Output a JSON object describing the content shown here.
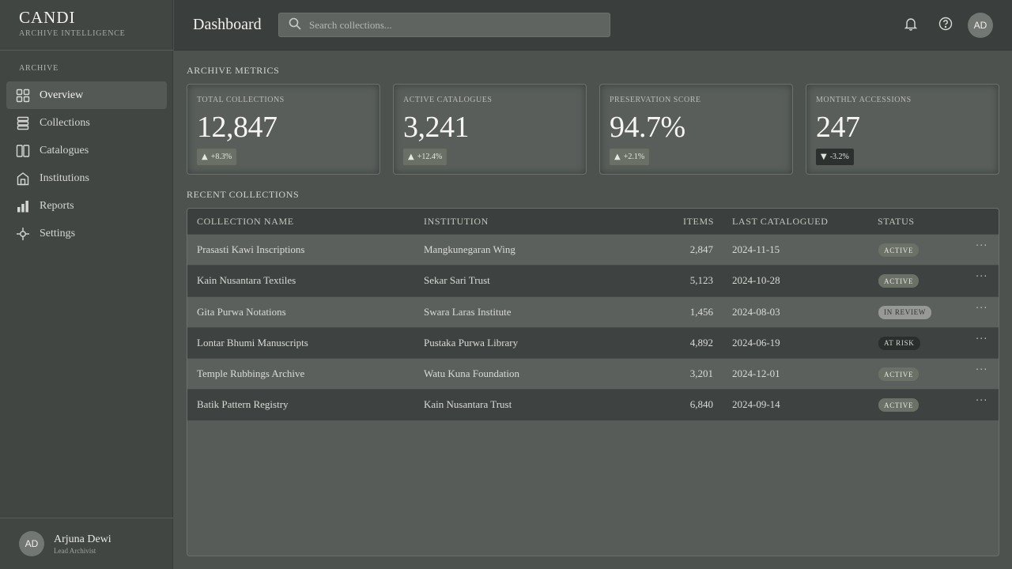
{
  "brand": {
    "title": "CANDI",
    "subtitle": "ARCHIVE INTELLIGENCE"
  },
  "sidebar": {
    "section_label": "ARCHIVE",
    "items": [
      {
        "label": "Overview",
        "icon": "grid-icon",
        "active": true
      },
      {
        "label": "Collections",
        "icon": "stack-icon",
        "active": false
      },
      {
        "label": "Catalogues",
        "icon": "book-icon",
        "active": false
      },
      {
        "label": "Institutions",
        "icon": "building-icon",
        "active": false
      },
      {
        "label": "Reports",
        "icon": "bar-chart-icon",
        "active": false
      },
      {
        "label": "Settings",
        "icon": "gear-icon",
        "active": false
      }
    ],
    "profile": {
      "initials": "AD",
      "name": "Arjuna Dewi",
      "role": "Lead Archivist"
    }
  },
  "header": {
    "title": "Dashboard",
    "search_placeholder": "Search collections...",
    "avatar_initials": "AD"
  },
  "metrics": {
    "label": "ARCHIVE METRICS",
    "cards": [
      {
        "label": "TOTAL COLLECTIONS",
        "value": "12,847",
        "delta": "+8.3%",
        "direction": "up"
      },
      {
        "label": "ACTIVE CATALOGUES",
        "value": "3,241",
        "delta": "+12.4%",
        "direction": "up"
      },
      {
        "label": "PRESERVATION SCORE",
        "value": "94.7%",
        "delta": "+2.1%",
        "direction": "up"
      },
      {
        "label": "MONTHLY ACCESSIONS",
        "value": "247",
        "delta": "-3.2%",
        "direction": "down"
      }
    ]
  },
  "recent": {
    "label": "RECENT COLLECTIONS",
    "columns": [
      "COLLECTION NAME",
      "INSTITUTION",
      "ITEMS",
      "LAST CATALOGUED",
      "STATUS"
    ],
    "rows": [
      {
        "name": "Prasasti Kawi Inscriptions",
        "institution": "Mangkunegaran Wing",
        "items": "2,847",
        "date": "2024-11-15",
        "status": "ACTIVE"
      },
      {
        "name": "Kain Nusantara Textiles",
        "institution": "Sekar Sari Trust",
        "items": "5,123",
        "date": "2024-10-28",
        "status": "ACTIVE"
      },
      {
        "name": "Gita Purwa Notations",
        "institution": "Swara Laras Institute",
        "items": "1,456",
        "date": "2024-08-03",
        "status": "IN REVIEW"
      },
      {
        "name": "Lontar Bhumi Manuscripts",
        "institution": "Pustaka Purwa Library",
        "items": "4,892",
        "date": "2024-06-19",
        "status": "AT RISK"
      },
      {
        "name": "Temple Rubbings Archive",
        "institution": "Watu Kuna Foundation",
        "items": "3,201",
        "date": "2024-12-01",
        "status": "ACTIVE"
      },
      {
        "name": "Batik Pattern Registry",
        "institution": "Kain Nusantara Trust",
        "items": "6,840",
        "date": "2024-09-14",
        "status": "ACTIVE"
      }
    ],
    "more_label": "···"
  },
  "colors": {
    "sidebar_bg": "#414643",
    "header_bg": "#3a3e3c",
    "main_bg": "#4d524f",
    "active_badge": "#6b7166",
    "review_badge": "#969995",
    "risk_badge": "#2a2e2c"
  }
}
